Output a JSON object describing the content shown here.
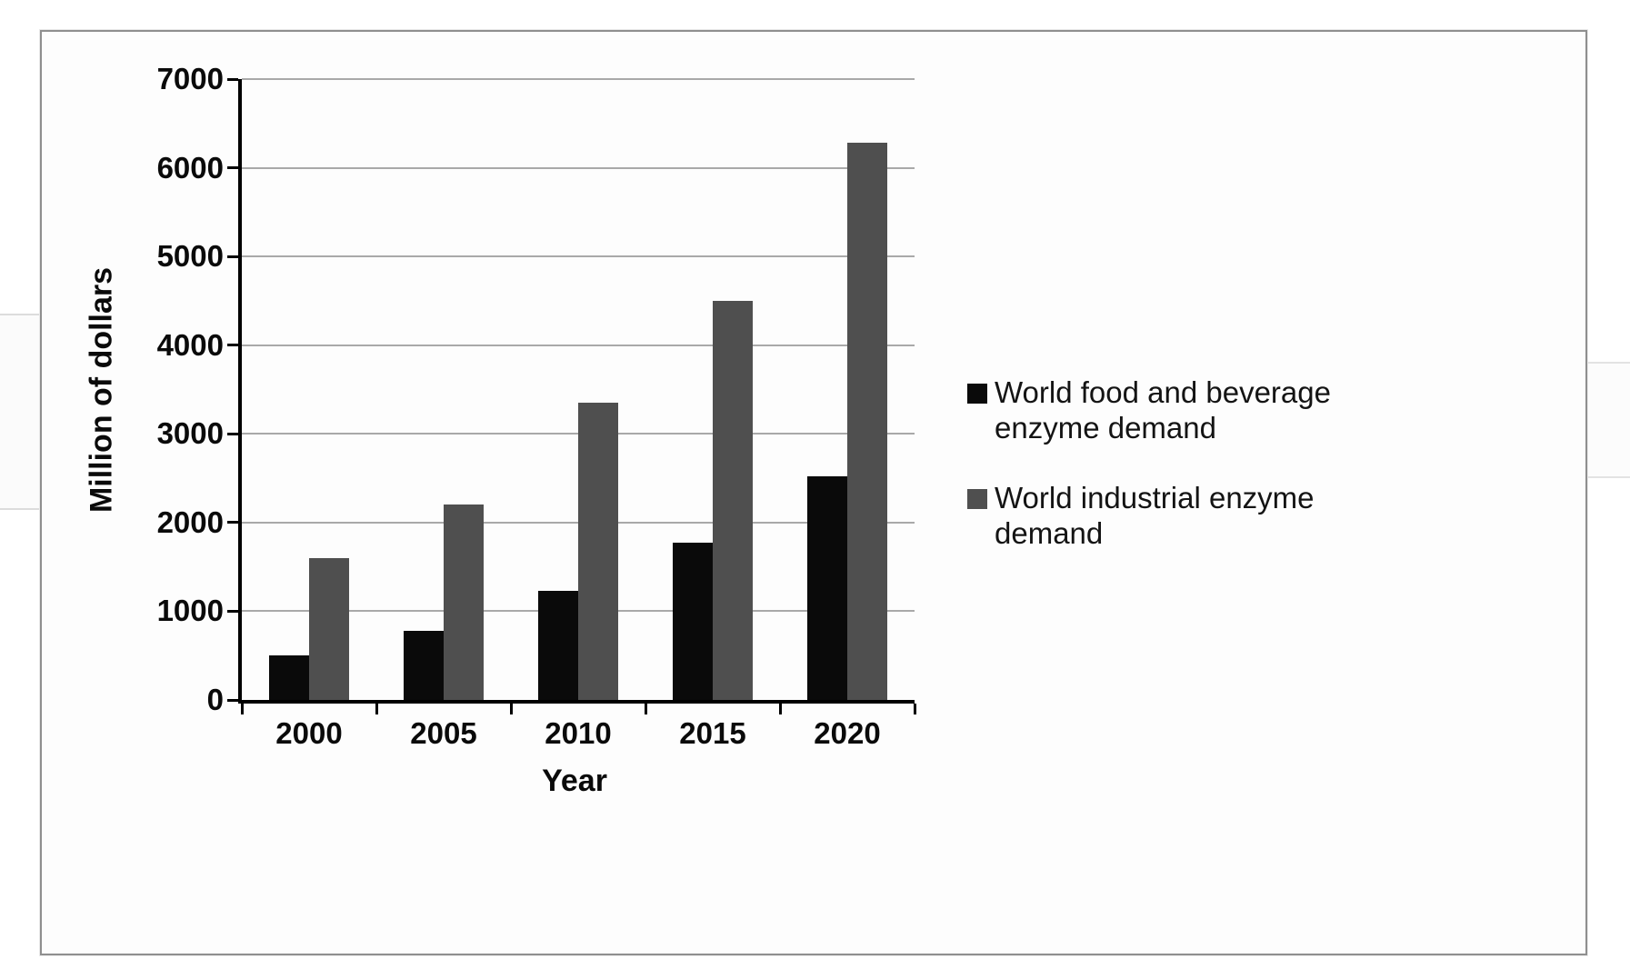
{
  "figure": {
    "border_color": "#8f8f8f",
    "background": "#fdfdfd",
    "gridline_color": "#a9a9a9",
    "axis_color": "#000000"
  },
  "chart_data": {
    "type": "bar",
    "title": "",
    "xlabel": "Year",
    "ylabel": "Million of dollars",
    "categories": [
      "2000",
      "2005",
      "2010",
      "2015",
      "2020"
    ],
    "yticks": [
      0,
      1000,
      2000,
      3000,
      4000,
      5000,
      6000,
      7000
    ],
    "ylim": [
      0,
      7000
    ],
    "grid": true,
    "legend_position": "right",
    "series": [
      {
        "name": "World food and beverage enzyme demand",
        "color": "#0a0a0a",
        "values": [
          500,
          775,
          1225,
          1775,
          2525
        ]
      },
      {
        "name": "World industrial enzyme demand",
        "color": "#4f4f4f",
        "values": [
          1600,
          2200,
          3350,
          4500,
          6280
        ]
      }
    ]
  }
}
